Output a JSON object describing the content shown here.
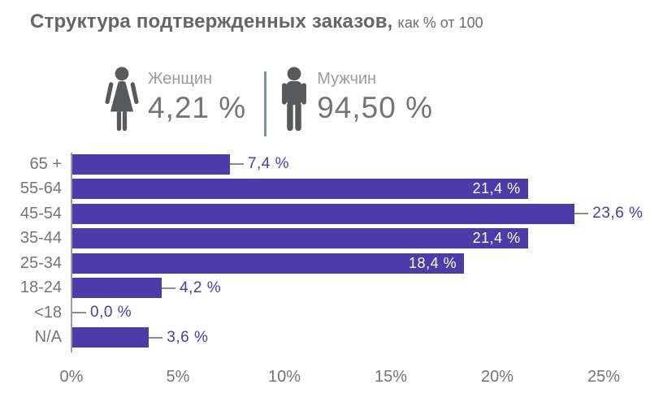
{
  "header": {
    "title": "Структура подтвержденных заказов,",
    "subtitle": "как % от 100"
  },
  "gender_stats": {
    "female": {
      "label": "Женщин",
      "value": "4,21 %",
      "icon": "woman-icon"
    },
    "male": {
      "label": "Мужчин",
      "value": "94,50 %",
      "icon": "man-icon"
    }
  },
  "chart_data": {
    "type": "bar",
    "orientation": "horizontal",
    "title": "Структура подтвержденных заказов, как % от 100",
    "categories": [
      "65 +",
      "55-64",
      "45-54",
      "35-44",
      "25-34",
      "18-24",
      "<18",
      "N/A"
    ],
    "values": [
      7.4,
      21.4,
      23.6,
      21.4,
      18.4,
      4.2,
      0.0,
      3.6
    ],
    "value_labels": [
      "7,4 %",
      "21,4 %",
      "23,6 %",
      "21,4 %",
      "18,4 %",
      "4,2 %",
      "0,0 %",
      "3,6 %"
    ],
    "label_placement": [
      "outside",
      "inside",
      "outside",
      "inside",
      "inside",
      "outside",
      "outside",
      "outside"
    ],
    "x_ticks": [
      "0%",
      "5%",
      "10%",
      "15%",
      "20%",
      "25%"
    ],
    "xlim": [
      0,
      25
    ],
    "grid": false,
    "legend": false
  },
  "colors": {
    "bar": "#4C3BA8",
    "value_label_inside": "#FFFFFF",
    "value_label_outside": "#4C3BA8",
    "axis_line": "#9E9E9E",
    "connector": "#8A8A94",
    "tick_label": "#757575",
    "category_label": "#757575",
    "title": "#666666",
    "subtitle": "#6E6E6E",
    "gender_label": "#9B9B9B",
    "gender_value": "#757575",
    "icon": "#58595B",
    "divider": "#7B90B2",
    "background": "#FFFFFF"
  }
}
